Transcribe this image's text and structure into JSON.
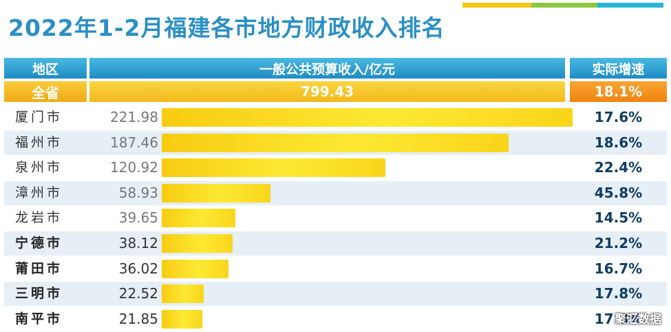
{
  "title": "2022年1-2月福建各市地方财政收入排名",
  "header": {
    "region": "地区",
    "revenue": "一般公共预算收入/亿元",
    "growth": "实际增速"
  },
  "total": {
    "region": "全省",
    "value": "799.43",
    "growth": "18.1%"
  },
  "watermark": "聚汇数据",
  "colors": {
    "header_blue": "#1e8cc4",
    "title_blue": "#2a8fc4",
    "total_yellow": "#f5b719",
    "growth_orange": "#f08a13",
    "bar_yellow": "#fde933",
    "stripe": [
      "#f6c614",
      "#8cc63e",
      "#29b4d6"
    ]
  },
  "chart_data": {
    "type": "bar",
    "orientation": "horizontal",
    "title": "2022年1-2月福建各市地方财政收入排名",
    "value_label": "一般公共预算收入/亿元",
    "growth_label": "实际增速",
    "categories": [
      "厦门市",
      "福州市",
      "泉州市",
      "漳州市",
      "龙岩市",
      "宁德市",
      "莆田市",
      "三明市",
      "南平市"
    ],
    "values": [
      221.98,
      187.46,
      120.92,
      58.93,
      39.65,
      38.12,
      36.02,
      22.52,
      21.85
    ],
    "value_labels": [
      "221.98",
      "187.46",
      "120.92",
      "58.93",
      "39.65",
      "38.12",
      "36.02",
      "22.52",
      "21.85"
    ],
    "growth": [
      "17.6%",
      "18.6%",
      "22.4%",
      "45.8%",
      "14.5%",
      "21.2%",
      "16.7%",
      "17.8%",
      "17.8%"
    ],
    "total": {
      "label": "全省",
      "value": 799.43,
      "growth": "18.1%"
    }
  }
}
